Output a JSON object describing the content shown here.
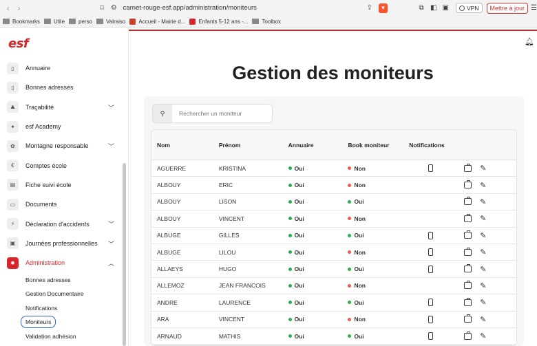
{
  "browser": {
    "url": "carnet-rouge-esf.app/administration/moniteurs",
    "vpn_label": "VPN",
    "update_label": "Mettre à jour",
    "bookmarks": [
      "Bookmarks",
      "Utile",
      "perso",
      "Valraiso",
      "Accueil - Mairie d...",
      "Enfants 5-12 ans -...",
      "Toolbox"
    ]
  },
  "app": {
    "logo": "esf",
    "title": "Gestion des moniteurs"
  },
  "sidebar": {
    "items": [
      {
        "label": "Annuaire",
        "icon": "book-icon"
      },
      {
        "label": "Bonnes adresses",
        "icon": "bookmark-icon"
      },
      {
        "label": "Traçabilité",
        "icon": "mountain-icon",
        "expandable": true
      },
      {
        "label": "esf Academy",
        "icon": "graduation-icon"
      },
      {
        "label": "Montagne responsable",
        "icon": "leaf-icon",
        "expandable": true
      },
      {
        "label": "Comptes école",
        "icon": "euro-icon"
      },
      {
        "label": "Fiche suivi école",
        "icon": "file-icon"
      },
      {
        "label": "Documents",
        "icon": "folder-icon"
      },
      {
        "label": "Déclaration d'accidents",
        "icon": "lightning-icon",
        "expandable": true
      },
      {
        "label": "Journées professionnelles",
        "icon": "briefcase-icon",
        "expandable": true
      },
      {
        "label": "Administration",
        "icon": "gear-icon",
        "expandable": true,
        "active": true
      }
    ],
    "admin_sub": [
      "Bonnes adresses",
      "Gestion Documentaire",
      "Notifications",
      "Moniteurs",
      "Validation adhésion"
    ]
  },
  "search": {
    "placeholder": "Rechercher un moniteur"
  },
  "table": {
    "headers": {
      "nom": "Nom",
      "prenom": "Prénom",
      "annuaire": "Annuaire",
      "book": "Book moniteur",
      "notifications": "Notifications"
    },
    "rows": [
      {
        "nom": "AGUERRE",
        "prenom": "KRISTINA",
        "annuaire": "Oui",
        "book": "Non",
        "phone": true
      },
      {
        "nom": "ALBOUY",
        "prenom": "ERIC",
        "annuaire": "Oui",
        "book": "Non",
        "phone": false
      },
      {
        "nom": "ALBOUY",
        "prenom": "LISON",
        "annuaire": "Oui",
        "book": "Oui",
        "phone": false
      },
      {
        "nom": "ALBOUY",
        "prenom": "VINCENT",
        "annuaire": "Oui",
        "book": "Non",
        "phone": false
      },
      {
        "nom": "ALBUGE",
        "prenom": "GILLES",
        "annuaire": "Oui",
        "book": "Oui",
        "phone": true
      },
      {
        "nom": "ALBUGE",
        "prenom": "LILOU",
        "annuaire": "Oui",
        "book": "Non",
        "phone": true
      },
      {
        "nom": "ALLAEYS",
        "prenom": "HUGO",
        "annuaire": "Oui",
        "book": "Oui",
        "phone": true
      },
      {
        "nom": "ALLEMOZ",
        "prenom": "JEAN FRANCOIS",
        "annuaire": "Oui",
        "book": "Non",
        "phone": false
      },
      {
        "nom": "ANDRE",
        "prenom": "LAURENCE",
        "annuaire": "Oui",
        "book": "Oui",
        "phone": true
      },
      {
        "nom": "ARA",
        "prenom": "VINCENT",
        "annuaire": "Oui",
        "book": "Non",
        "phone": true
      },
      {
        "nom": "ARNAUD",
        "prenom": "MATHIS",
        "annuaire": "Oui",
        "book": "Oui",
        "phone": true
      }
    ]
  },
  "colors": {
    "brand_red": "#d7262b",
    "status_green": "#27b34a",
    "status_red": "#ef5a4b",
    "selected_outline": "#2a5bd7"
  }
}
